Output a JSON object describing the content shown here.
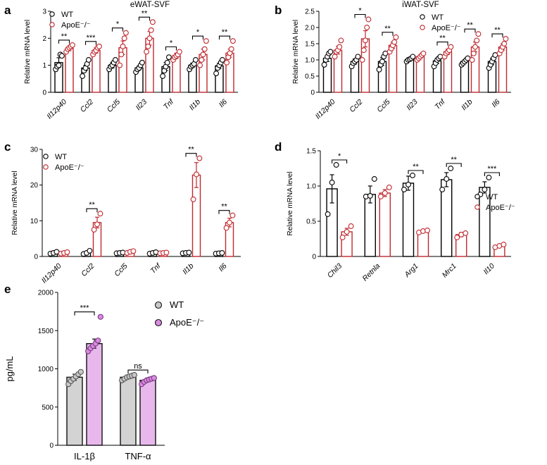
{
  "figure": {
    "colors": {
      "wt": "#000000",
      "apoe": "#c0282e",
      "wt_fill_e": "#d3d3d3",
      "apoe_fill_e": "#e8b8ec",
      "apoe_dot_e": "#d98be0"
    },
    "panels": [
      {
        "letter": "a",
        "chart_data": {
          "type": "bar",
          "title": "eWAT-SVF",
          "ylabel": "Relative mRNA level",
          "ylim": [
            0,
            3
          ],
          "yticks": [
            "0",
            "1",
            "2",
            "3"
          ],
          "categories": [
            "Il12p40",
            "Ccl2",
            "Ccl5",
            "Il23",
            "Tnf",
            "Il1b",
            "Il6"
          ],
          "series": [
            {
              "name": "WT",
              "values": [
                1.1,
                0.9,
                1.0,
                0.9,
                0.95,
                1.0,
                0.98
              ],
              "errors": [
                0.18,
                0.1,
                0.1,
                0.08,
                0.15,
                0.08,
                0.1
              ],
              "points": [
                [
                  0.85,
                  0.95,
                  1.0,
                  1.4,
                  1.35
                ],
                [
                  0.6,
                  0.8,
                  0.9,
                  1.05,
                  1.2
                ],
                [
                  0.85,
                  0.95,
                  1.0,
                  1.1,
                  1.2
                ],
                [
                  0.75,
                  0.85,
                  0.9,
                  1.0,
                  1.1
                ],
                [
                  0.6,
                  0.8,
                  0.95,
                  1.1,
                  1.3
                ],
                [
                  0.85,
                  0.95,
                  1.0,
                  1.05,
                  1.2
                ],
                [
                  0.7,
                  0.9,
                  1.0,
                  1.1,
                  1.2
                ]
              ]
            },
            {
              "name": "ApoE⁻/⁻",
              "values": [
                1.62,
                1.55,
                1.65,
                2.0,
                1.35,
                1.4,
                1.45
              ],
              "errors": [
                0.08,
                0.1,
                0.25,
                0.25,
                0.1,
                0.2,
                0.15
              ],
              "points": [
                [
                  1.5,
                  1.6,
                  1.65,
                  1.7,
                  1.75
                ],
                [
                  1.4,
                  1.5,
                  1.55,
                  1.65,
                  1.7
                ],
                [
                  1.0,
                  1.4,
                  1.7,
                  2.0,
                  2.2
                ],
                [
                  1.5,
                  1.7,
                  2.0,
                  2.3,
                  2.6
                ],
                [
                  1.2,
                  1.3,
                  1.35,
                  1.4,
                  1.5
                ],
                [
                  1.0,
                  1.2,
                  1.4,
                  1.6,
                  1.9
                ],
                [
                  1.1,
                  1.3,
                  1.45,
                  1.6,
                  1.9
                ]
              ]
            }
          ],
          "significance": [
            "**",
            "***",
            "*",
            "**",
            "*",
            "*",
            "**"
          ],
          "legend": [
            "WT",
            "ApoE⁻/⁻"
          ],
          "legend_position": "top-left"
        }
      },
      {
        "letter": "b",
        "chart_data": {
          "type": "bar",
          "title": "iWAT-SVF",
          "ylabel": "Relative mRNA level",
          "ylim": [
            0,
            2.5
          ],
          "yticks": [
            "0",
            "0.5",
            "1.0",
            "1.5",
            "2.0",
            "2.5"
          ],
          "categories": [
            "Il12p40",
            "Ccl2",
            "Ccl5",
            "Il23",
            "Tnf",
            "Il1b",
            "Il6"
          ],
          "series": [
            {
              "name": "WT",
              "values": [
                1.05,
                0.95,
                0.95,
                1.02,
                0.97,
                0.95,
                0.95
              ],
              "errors": [
                0.1,
                0.08,
                0.12,
                0.05,
                0.08,
                0.05,
                0.1
              ],
              "points": [
                [
                  0.85,
                  1.0,
                  1.1,
                  1.2,
                  1.25
                ],
                [
                  0.8,
                  0.9,
                  0.95,
                  1.0,
                  1.1
                ],
                [
                  0.7,
                  0.85,
                  0.95,
                  1.1,
                  1.2
                ],
                [
                  0.95,
                  1.0,
                  1.02,
                  1.05,
                  1.1
                ],
                [
                  0.8,
                  0.9,
                  1.0,
                  1.05,
                  1.1
                ],
                [
                  0.85,
                  0.9,
                  0.95,
                  1.0,
                  1.05
                ],
                [
                  0.75,
                  0.85,
                  0.95,
                  1.05,
                  1.15
                ]
              ]
            },
            {
              "name": "ApoE⁻/⁻",
              "values": [
                1.3,
                1.65,
                1.45,
                1.1,
                1.25,
                1.4,
                1.4
              ],
              "errors": [
                0.12,
                0.25,
                0.1,
                0.05,
                0.08,
                0.15,
                0.1
              ],
              "points": [
                [
                  1.1,
                  1.25,
                  1.3,
                  1.4,
                  1.6
                ],
                [
                  1.0,
                  1.3,
                  1.6,
                  2.0,
                  2.25
                ],
                [
                  1.25,
                  1.35,
                  1.45,
                  1.55,
                  1.7
                ],
                [
                  1.0,
                  1.05,
                  1.1,
                  1.15,
                  1.2
                ],
                [
                  1.1,
                  1.2,
                  1.25,
                  1.3,
                  1.4
                ],
                [
                  1.0,
                  1.2,
                  1.4,
                  1.6,
                  1.8
                ],
                [
                  1.2,
                  1.3,
                  1.4,
                  1.5,
                  1.65
                ]
              ]
            }
          ],
          "significance": [
            "",
            "*",
            "**",
            "",
            "**",
            "**",
            "**"
          ],
          "legend": [
            "WT",
            "ApoE⁻/⁻"
          ],
          "legend_position": "top-right"
        }
      },
      {
        "letter": "c",
        "chart_data": {
          "type": "bar",
          "title": "",
          "ylabel": "Relative mRNA level",
          "ylim": [
            0,
            30
          ],
          "yticks": [
            "0",
            "10",
            "20",
            "30"
          ],
          "categories": [
            "Il12p40",
            "Ccl2",
            "Ccl5",
            "Tnf",
            "Il1b",
            "Il6"
          ],
          "series": [
            {
              "name": "WT",
              "values": [
                1.0,
                1.1,
                1.0,
                1.0,
                1.0,
                0.9
              ],
              "errors": [
                0.2,
                0.3,
                0.1,
                0.1,
                0.1,
                0.1
              ],
              "points": [
                [
                  0.8,
                  1.0,
                  1.3
                ],
                [
                  0.7,
                  1.0,
                  1.6
                ],
                [
                  0.9,
                  1.0,
                  1.1
                ],
                [
                  0.8,
                  1.0,
                  1.2
                ],
                [
                  0.9,
                  1.0,
                  1.1
                ],
                [
                  0.8,
                  0.9,
                  1.0
                ]
              ]
            },
            {
              "name": "ApoE⁻/⁻",
              "values": [
                1.0,
                9.5,
                1.3,
                1.0,
                22.8,
                9.5
              ],
              "errors": [
                0.2,
                1.5,
                0.2,
                0.1,
                3.5,
                1.2
              ],
              "points": [
                [
                  0.8,
                  1.0,
                  1.2
                ],
                [
                  7.5,
                  9.0,
                  12.0
                ],
                [
                  1.0,
                  1.3,
                  1.5
                ],
                [
                  0.9,
                  1.0,
                  1.1
                ],
                [
                  16.0,
                  23.0,
                  27.5
                ],
                [
                  8.0,
                  9.5,
                  11.5
                ]
              ]
            }
          ],
          "significance": [
            "",
            "**",
            "",
            "",
            "**",
            "**"
          ],
          "legend": [
            "WT",
            "ApoE⁻/⁻"
          ],
          "legend_position": "top-left"
        }
      },
      {
        "letter": "d",
        "chart_data": {
          "type": "bar",
          "title": "",
          "ylabel": "Relative mRNA level",
          "ylim": [
            0,
            1.5
          ],
          "yticks": [
            "0",
            "0.5",
            "1.0",
            "1.5"
          ],
          "categories": [
            "Chil3",
            "Retnla",
            "Arg1",
            "Mrc1",
            "Il10"
          ],
          "series": [
            {
              "name": "WT",
              "values": [
                0.96,
                0.88,
                1.04,
                1.09,
                0.98
              ],
              "errors": [
                0.2,
                0.12,
                0.1,
                0.1,
                0.08
              ],
              "points": [
                [
                  0.6,
                  1.05,
                  1.3
                ],
                [
                  0.85,
                  0.86,
                  1.1
                ],
                [
                  0.95,
                  1.02,
                  1.15
                ],
                [
                  0.95,
                  1.1,
                  1.25
                ],
                [
                  0.88,
                  0.95,
                  1.12
                ]
              ]
            },
            {
              "name": "ApoE⁻/⁻",
              "values": [
                0.35,
                0.9,
                0.36,
                0.31,
                0.15
              ],
              "errors": [
                0.05,
                0.05,
                0.02,
                0.03,
                0.02
              ],
              "points": [
                [
                  0.27,
                  0.35,
                  0.43
                ],
                [
                  0.85,
                  0.9,
                  0.98
                ],
                [
                  0.34,
                  0.36,
                  0.37
                ],
                [
                  0.27,
                  0.31,
                  0.33
                ],
                [
                  0.13,
                  0.15,
                  0.17
                ]
              ]
            }
          ],
          "significance": [
            "*",
            "",
            "**",
            "**",
            "***"
          ],
          "legend": [
            "WT",
            "ApoE⁻/⁻"
          ],
          "legend_position": "right"
        }
      },
      {
        "letter": "e",
        "chart_data": {
          "type": "bar",
          "title": "",
          "ylabel": "pg/mL",
          "ylim": [
            0,
            2000
          ],
          "yticks": [
            "0",
            "500",
            "1000",
            "1500",
            "2000"
          ],
          "categories": [
            "IL-1β",
            "TNF-α"
          ],
          "series": [
            {
              "name": "WT",
              "values": [
                890,
                890
              ],
              "errors": [
                40,
                20
              ],
              "points": [
                [
                  800,
                  840,
                  870,
                  900,
                  930,
                  960
                ],
                [
                  850,
                  870,
                  890,
                  900,
                  910,
                  920
                ]
              ]
            },
            {
              "name": "ApoE⁻/⁻",
              "values": [
                1330,
                850
              ],
              "errors": [
                60,
                20
              ],
              "points": [
                [
                  1230,
                  1270,
                  1300,
                  1330,
                  1370,
                  1680
                ],
                [
                  800,
                  830,
                  850,
                  860,
                  870,
                  880
                ]
              ]
            }
          ],
          "significance": [
            "***",
            "ns"
          ],
          "legend": [
            "WT",
            "ApoE⁻/⁻"
          ],
          "legend_position": "top-right"
        }
      }
    ]
  }
}
